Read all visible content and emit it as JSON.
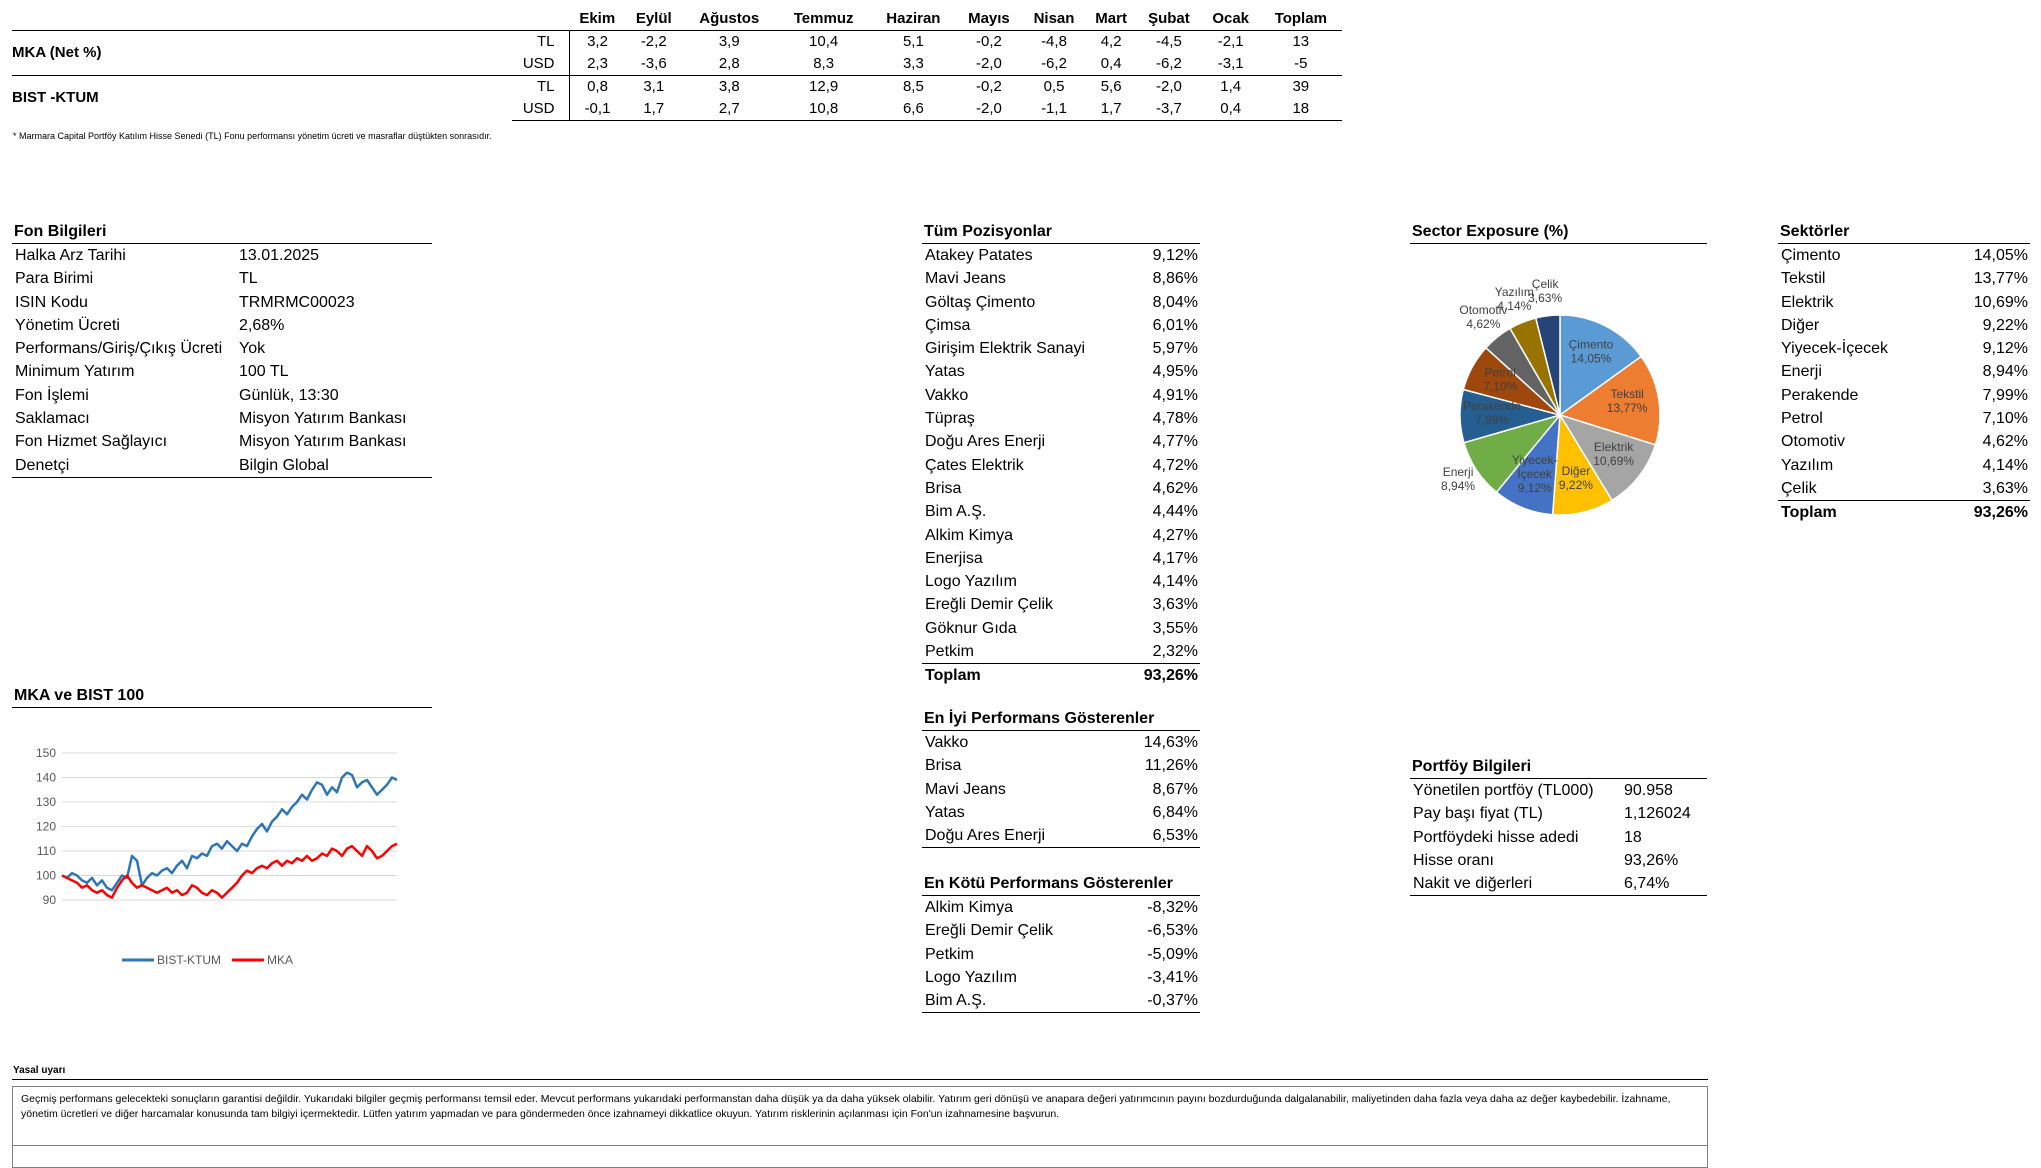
{
  "performance": {
    "months": [
      "Ekim",
      "Eylül",
      "Ağustos",
      "Temmuz",
      "Haziran",
      "Mayıs",
      "Nisan",
      "Mart",
      "Şubat",
      "Ocak",
      "Toplam"
    ],
    "rows": [
      {
        "name": "MKA (Net %)",
        "currency": "TL",
        "values": [
          "3,2",
          "-2,2",
          "3,9",
          "10,4",
          "5,1",
          "-0,2",
          "-4,8",
          "4,2",
          "-4,5",
          "-2,1",
          "13"
        ]
      },
      {
        "name": "",
        "currency": "USD",
        "values": [
          "2,3",
          "-3,6",
          "2,8",
          "8,3",
          "3,3",
          "-2,0",
          "-6,2",
          "0,4",
          "-6,2",
          "-3,1",
          "-5"
        ]
      },
      {
        "name": "BIST -KTUM",
        "currency": "TL",
        "values": [
          "0,8",
          "3,1",
          "3,8",
          "12,9",
          "8,5",
          "-0,2",
          "0,5",
          "5,6",
          "-2,0",
          "1,4",
          "39"
        ]
      },
      {
        "name": "",
        "currency": "USD",
        "values": [
          "-0,1",
          "1,7",
          "2,7",
          "10,8",
          "6,6",
          "-2,0",
          "-1,1",
          "1,7",
          "-3,7",
          "0,4",
          "18"
        ]
      }
    ],
    "footnote": "* Marmara Capital Portföy Katılım Hisse Senedi (TL) Fonu performansı yönetim ücreti ve masraflar düştükten sonrasıdır."
  },
  "fon_bilgileri": {
    "title": "Fon Bilgileri",
    "items": [
      {
        "k": "Halka Arz Tarihi",
        "v": "13.01.2025"
      },
      {
        "k": "Para Birimi",
        "v": "TL"
      },
      {
        "k": "ISIN Kodu",
        "v": "TRMRMC00023"
      },
      {
        "k": "Yönetim Ücreti",
        "v": "2,68%"
      },
      {
        "k": "Performans/Giriş/Çıkış Ücreti",
        "v": "Yok"
      },
      {
        "k": "Minimum Yatırım",
        "v": "100 TL"
      },
      {
        "k": "Fon İşlemi",
        "v": "Günlük, 13:30"
      },
      {
        "k": "Saklamacı",
        "v": "Misyon Yatırım Bankası"
      },
      {
        "k": "Fon Hizmet Sağlayıcı",
        "v": "Misyon Yatırım Bankası"
      },
      {
        "k": "Denetçi",
        "v": "Bilgin Global"
      }
    ]
  },
  "tum_pozisyonlar": {
    "title": "Tüm Pozisyonlar",
    "items": [
      {
        "k": "Atakey Patates",
        "v": "9,12%"
      },
      {
        "k": "Mavi Jeans",
        "v": "8,86%"
      },
      {
        "k": "Göltaş Çimento",
        "v": "8,04%"
      },
      {
        "k": "Çimsa",
        "v": "6,01%"
      },
      {
        "k": "Girişim Elektrik Sanayi",
        "v": "5,97%"
      },
      {
        "k": "Yatas",
        "v": "4,95%"
      },
      {
        "k": "Vakko",
        "v": "4,91%"
      },
      {
        "k": "Tüpraş",
        "v": "4,78%"
      },
      {
        "k": "Doğu Ares Enerji",
        "v": "4,77%"
      },
      {
        "k": "Çates Elektrik",
        "v": "4,72%"
      },
      {
        "k": "Brisa",
        "v": "4,62%"
      },
      {
        "k": "Bim A.Ş.",
        "v": "4,44%"
      },
      {
        "k": "Alkim Kimya",
        "v": "4,27%"
      },
      {
        "k": "Enerjisa",
        "v": "4,17%"
      },
      {
        "k": "Logo Yazılım",
        "v": "4,14%"
      },
      {
        "k": "Ereğli Demir Çelik",
        "v": "3,63%"
      },
      {
        "k": "Göknur Gıda",
        "v": "3,55%"
      },
      {
        "k": "Petkim",
        "v": "2,32%"
      }
    ],
    "total_label": "Toplam",
    "total_value": "93,26%"
  },
  "en_iyi": {
    "title": "En İyi Performans Gösterenler",
    "items": [
      {
        "k": "Vakko",
        "v": "14,63%"
      },
      {
        "k": "Brisa",
        "v": "11,26%"
      },
      {
        "k": "Mavi Jeans",
        "v": "8,67%"
      },
      {
        "k": "Yatas",
        "v": "6,84%"
      },
      {
        "k": "Doğu Ares Enerji",
        "v": "6,53%"
      }
    ]
  },
  "en_kotu": {
    "title": "En Kötü Performans Gösterenler",
    "items": [
      {
        "k": "Alkim Kimya",
        "v": "-8,32%"
      },
      {
        "k": "Ereğli Demir Çelik",
        "v": "-6,53%"
      },
      {
        "k": "Petkim",
        "v": "-5,09%"
      },
      {
        "k": "Logo Yazılım",
        "v": "-3,41%"
      },
      {
        "k": "Bim A.Ş.",
        "v": "-0,37%"
      }
    ]
  },
  "sektorler": {
    "title": "Sektörler",
    "items": [
      {
        "k": "Çimento",
        "v": "14,05%"
      },
      {
        "k": "Tekstil",
        "v": "13,77%"
      },
      {
        "k": "Elektrik",
        "v": "10,69%"
      },
      {
        "k": "Diğer",
        "v": "9,22%"
      },
      {
        "k": "Yiyecek-İçecek",
        "v": "9,12%"
      },
      {
        "k": "Enerji",
        "v": "8,94%"
      },
      {
        "k": "Perakende",
        "v": "7,99%"
      },
      {
        "k": "Petrol",
        "v": "7,10%"
      },
      {
        "k": "Otomotiv",
        "v": "4,62%"
      },
      {
        "k": "Yazılım",
        "v": "4,14%"
      },
      {
        "k": "Çelik",
        "v": "3,63%"
      }
    ],
    "total_label": "Toplam",
    "total_value": "93,26%"
  },
  "portfoy": {
    "title": "Portföy Bilgileri",
    "items": [
      {
        "k": "Yönetilen portföy (TL000)",
        "v": "90.958"
      },
      {
        "k": "Pay başı fiyat (TL)",
        "v": "1,126024"
      },
      {
        "k": "Portföydeki hisse adedi",
        "v": "18"
      },
      {
        "k": "Hisse oranı",
        "v": "93,26%"
      },
      {
        "k": "Nakit ve diğerleri",
        "v": "6,74%"
      }
    ]
  },
  "legal": {
    "title": "Yasal uyarı",
    "text": "Geçmiş performans gelecekteki sonuçların garantisi değildir. Yukarıdaki bilgiler geçmiş performansı temsil eder. Mevcut performans yukarıdaki performanstan daha düşük ya da daha yüksek olabilir. Yatırım geri dönüşü ve anapara değeri yatırımcının payını bozdurduğunda dalgalanabilir, maliyetinden daha fazla veya daha az değer kaybedebilir. İzahname, yönetim ücretleri ve diğer harcamalar konusunda tam bilgiyi içermektedir. Lütfen yatırım yapmadan ve para göndermeden önce izahnameyi dikkatlice okuyun.  Yatırım risklerinin açılanması için Fon'un izahnamesine başvurun."
  },
  "chart_data": [
    {
      "type": "pie",
      "title": "Sector Exposure (%)",
      "categories": [
        "Çimento",
        "Tekstil",
        "Elektrik",
        "Diğer",
        "Yiyecek-İçecek",
        "Enerji",
        "Perakende",
        "Petrol",
        "Otomotiv",
        "Yazılım",
        "Çelik"
      ],
      "label_texts": [
        "Çimento",
        "Tekstil",
        "Elektrik",
        "Diğer",
        "Yiyecek-İçecek",
        "Enerji",
        "Perakende",
        "Petrol",
        "Otomotiv",
        "Yazılım",
        "Çelik"
      ],
      "label_values": [
        "14,05%",
        "13,77%",
        "10,69%",
        "9,22%",
        "9,12%",
        "8,94%",
        "7,99%",
        "7,10%",
        "4,62%",
        "4,14%",
        "3,63%"
      ],
      "values": [
        14.05,
        13.77,
        10.69,
        9.22,
        9.12,
        8.94,
        7.99,
        7.1,
        4.62,
        4.14,
        3.63
      ],
      "colors": [
        "#5B9BD5",
        "#ED7D31",
        "#A5A5A5",
        "#FFC000",
        "#4472C4",
        "#70AD47",
        "#255E91",
        "#9E480E",
        "#636363",
        "#997300",
        "#264478"
      ]
    },
    {
      "type": "line",
      "title": "MKA ve BIST 100",
      "ylim": [
        90,
        150
      ],
      "yticks": [
        "90",
        "100",
        "110",
        "120",
        "130",
        "140",
        "150"
      ],
      "series": [
        {
          "name": "BIST-KTUM",
          "color": "#2E75B6",
          "values": [
            100,
            99,
            101,
            100,
            98,
            97,
            99,
            96,
            98,
            95,
            94,
            97,
            100,
            99,
            108,
            106,
            96,
            99,
            101,
            100,
            102,
            103,
            101,
            104,
            106,
            103,
            108,
            107,
            109,
            108,
            112,
            113,
            111,
            114,
            112,
            110,
            113,
            112,
            116,
            119,
            121,
            118,
            122,
            124,
            127,
            125,
            128,
            130,
            133,
            131,
            135,
            138,
            137,
            133,
            136,
            134,
            140,
            142,
            141,
            136,
            138,
            139,
            136,
            133,
            135,
            137,
            140,
            139
          ]
        },
        {
          "name": "MKA",
          "color": "#FF0000",
          "values": [
            100,
            99,
            98,
            97,
            95,
            96,
            94,
            93,
            94,
            92,
            91,
            95,
            98,
            100,
            97,
            95,
            96,
            95,
            94,
            93,
            94,
            95,
            93,
            94,
            92,
            93,
            96,
            95,
            93,
            92,
            94,
            93,
            91,
            93,
            95,
            97,
            100,
            102,
            101,
            103,
            104,
            103,
            105,
            106,
            104,
            106,
            105,
            107,
            106,
            108,
            106,
            107,
            109,
            108,
            111,
            110,
            108,
            111,
            112,
            110,
            108,
            112,
            110,
            107,
            108,
            110,
            112,
            113
          ]
        }
      ]
    }
  ]
}
